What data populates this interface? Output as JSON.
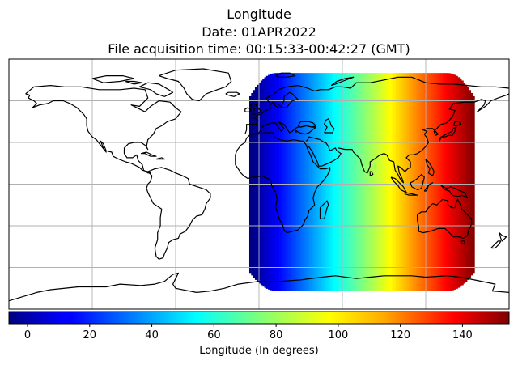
{
  "title": {
    "line1": "Longitude",
    "line2": "Date: 01APR2022",
    "line3": "File acquisition time: 00:15:33-00:42:27 (GMT)"
  },
  "colorbar": {
    "label": "Longitude (In degrees)",
    "colormap": "jet",
    "range": [
      -6,
      155
    ],
    "ticks": [
      0,
      20,
      40,
      60,
      80,
      100,
      120,
      140
    ]
  },
  "map": {
    "projection": "PlateCarree",
    "gridlines": true,
    "lon_gridlines": [
      -120,
      -60,
      0,
      60,
      120
    ],
    "lat_gridlines": [
      -60,
      -30,
      0,
      30,
      60
    ],
    "coastline_color": "#000000",
    "grid_color": "#b0b0b0"
  },
  "chart_data": {
    "type": "heatmap",
    "variable": "Longitude",
    "units": "degrees",
    "swath": {
      "lon_min_equator": -7,
      "lon_max_equator": 155,
      "lon_min_poleward": 2,
      "lon_max_poleward": 146,
      "lat_min": -77,
      "lat_max": 80
    },
    "vmin": -6,
    "vmax": 155
  }
}
